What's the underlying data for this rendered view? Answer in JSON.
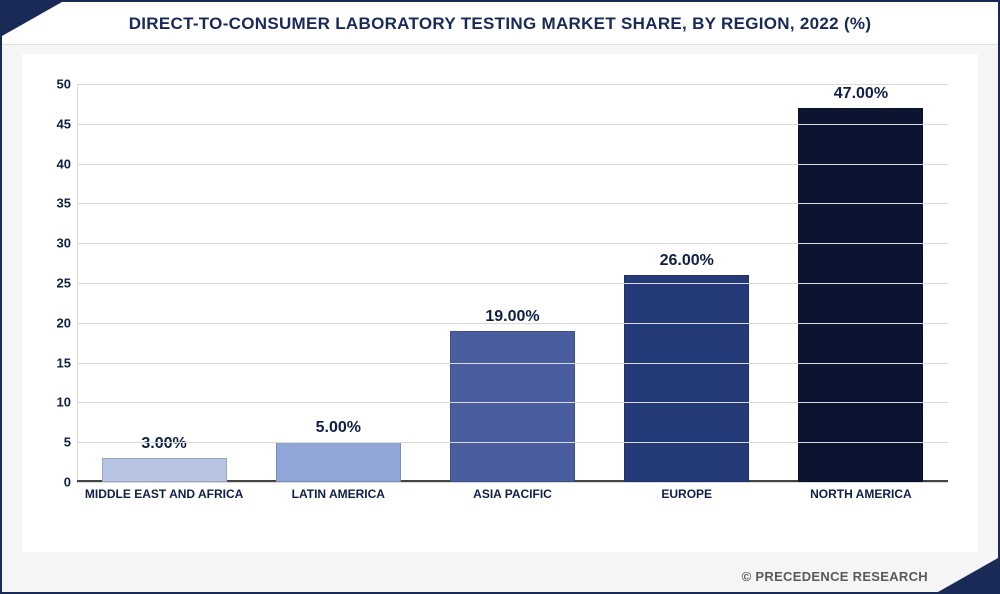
{
  "chart": {
    "type": "bar",
    "title": "DIRECT-TO-CONSUMER LABORATORY TESTING MARKET SHARE, BY REGION, 2022 (%)",
    "title_fontsize": 17,
    "title_color": "#1a2a56",
    "background_color": "#ffffff",
    "frame_border_color": "#1a2a56",
    "grid_color": "#d9d9d9",
    "axis_color": "#444444",
    "label_color": "#0f1f45",
    "label_fontsize": 12,
    "value_label_fontsize": 16,
    "ylim": [
      0,
      50
    ],
    "ytick_step": 5,
    "yticks": [
      0,
      5,
      10,
      15,
      20,
      25,
      30,
      35,
      40,
      45,
      50
    ],
    "bar_width_pct": 76,
    "categories": [
      "MIDDLE EAST AND AFRICA",
      "LATIN AMERICA",
      "ASIA PACIFIC",
      "EUROPE",
      "NORTH AMERICA"
    ],
    "values": [
      3.0,
      5.0,
      19.0,
      26.0,
      47.0
    ],
    "value_labels": [
      "3.00%",
      "5.00%",
      "19.00%",
      "26.00%",
      "47.00%"
    ],
    "bar_colors": [
      "#b7c4e4",
      "#8fa6d6",
      "#4a5d9e",
      "#253a78",
      "#0b1430"
    ]
  },
  "attribution": "© PRECEDENCE RESEARCH"
}
